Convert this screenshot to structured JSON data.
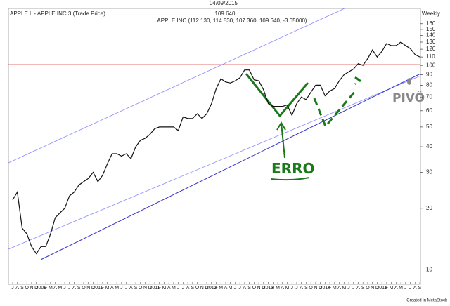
{
  "chart_data": {
    "type": "line",
    "date": "04/09/2015",
    "title": "APPLE L - APPLE INC:3 (Trade Price)",
    "last_price": "109.640",
    "periodicity": "Weekly",
    "subtitle": "APPLE INC (112.130, 114.530, 107.360, 109.640, -3.65000)",
    "footer": "Created in MetaStock",
    "annotations": [
      "ERRO",
      "PIVÔ"
    ],
    "log_scale": true,
    "color": "#111111",
    "categories": [
      "J",
      "A",
      "S",
      "O",
      "N",
      "D",
      "2009",
      "F",
      "M",
      "A",
      "M",
      "J",
      "J",
      "A",
      "S",
      "O",
      "N",
      "D",
      "2010",
      "F",
      "M",
      "A",
      "M",
      "J",
      "J",
      "A",
      "S",
      "O",
      "N",
      "D",
      "2011",
      "F",
      "M",
      "A",
      "M",
      "J",
      "J",
      "A",
      "S",
      "O",
      "N",
      "D",
      "2012",
      "F",
      "M",
      "A",
      "M",
      "J",
      "J",
      "A",
      "S",
      "O",
      "N",
      "D",
      "2013",
      "F",
      "M",
      "A",
      "M",
      "J",
      "J",
      "A",
      "S",
      "O",
      "N",
      "D",
      "2014",
      "F",
      "M",
      "A",
      "M",
      "J",
      "J",
      "A",
      "S",
      "O",
      "N",
      "D",
      "2015",
      "F",
      "M",
      "A",
      "M",
      "J",
      "J",
      "A",
      "S"
    ],
    "values": [
      22,
      24,
      16,
      15,
      13,
      12,
      13,
      13,
      15,
      18,
      19,
      20,
      23,
      24,
      26,
      27,
      28,
      30,
      27,
      29,
      33,
      37,
      37,
      36,
      37,
      35,
      40,
      43,
      44,
      46,
      49,
      50,
      50,
      50,
      50,
      48,
      56,
      55,
      55,
      58,
      55,
      58,
      65,
      77,
      86,
      83,
      82,
      84,
      87,
      95,
      95,
      85,
      84,
      76,
      65,
      63,
      63,
      63,
      64,
      57,
      65,
      70,
      68,
      74,
      80,
      80,
      71,
      75,
      77,
      84,
      90,
      93,
      96,
      102,
      100,
      108,
      119,
      110,
      117,
      128,
      125,
      125,
      130,
      125,
      121,
      113,
      110
    ],
    "ylim": [
      8.5,
      190
    ],
    "yticks": [
      10,
      20,
      30,
      40,
      50,
      60,
      70,
      80,
      90,
      100,
      110,
      120,
      130,
      140,
      150,
      160
    ],
    "grid": false
  }
}
